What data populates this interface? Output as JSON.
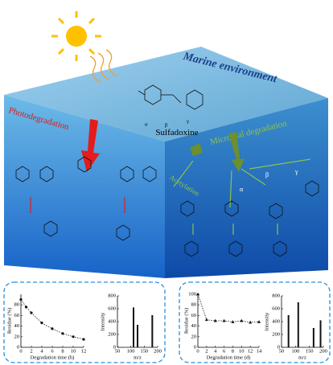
{
  "scene": {
    "environment": "Marine environment",
    "compound": "Sulfadoxine",
    "photo": "Photodegradation",
    "microbial": "Microbial degradation",
    "acetylation": "Acetylation",
    "sites": [
      "α",
      "β",
      "γ"
    ]
  },
  "charts": [
    {
      "type": "scatter",
      "marker": "circle",
      "x": [
        0,
        1,
        2,
        4,
        6,
        8,
        10,
        12
      ],
      "values": [
        90,
        76,
        65,
        46,
        35,
        26,
        20,
        15
      ],
      "xlim": [
        0,
        12
      ],
      "xticks": [
        0,
        2,
        4,
        6,
        8,
        10,
        12
      ],
      "ylim": [
        0,
        100
      ],
      "yticks": [
        0,
        20,
        40,
        60,
        80
      ],
      "xlabel": "Degradation time (h)",
      "ylabel": "Residue (%)"
    },
    {
      "type": "bar",
      "x": [
        110,
        125,
        180
      ],
      "values": [
        620,
        350,
        500
      ],
      "xlim": [
        50,
        200
      ],
      "xticks": [
        50,
        100,
        150,
        200
      ],
      "ylim": [
        0,
        800
      ],
      "yticks": [
        0,
        200,
        400,
        600,
        800
      ],
      "xlabel": "m/z",
      "ylabel": "Intensity"
    },
    {
      "type": "scatter",
      "marker": "triangle",
      "x": [
        0,
        2,
        4,
        6,
        8,
        10,
        12,
        14
      ],
      "values": [
        100,
        52,
        50,
        50,
        48,
        50,
        47,
        48
      ],
      "xlim": [
        0,
        14
      ],
      "xticks": [
        0,
        2,
        4,
        6,
        8,
        10,
        12,
        14
      ],
      "ylim": [
        0,
        100
      ],
      "yticks": [
        0,
        20,
        40,
        60,
        80,
        100
      ],
      "xlabel": "Degradation time (d)",
      "ylabel": "Residue (%)"
    },
    {
      "type": "bar",
      "x": [
        75,
        110,
        165,
        190
      ],
      "values": [
        500,
        700,
        300,
        420
      ],
      "xlim": [
        50,
        200
      ],
      "xticks": [
        50,
        100,
        150,
        200
      ],
      "ylim": [
        0,
        800
      ],
      "yticks": [
        0,
        200,
        400,
        600,
        800
      ],
      "xlabel": "m/z",
      "ylabel": "Intensity"
    }
  ]
}
